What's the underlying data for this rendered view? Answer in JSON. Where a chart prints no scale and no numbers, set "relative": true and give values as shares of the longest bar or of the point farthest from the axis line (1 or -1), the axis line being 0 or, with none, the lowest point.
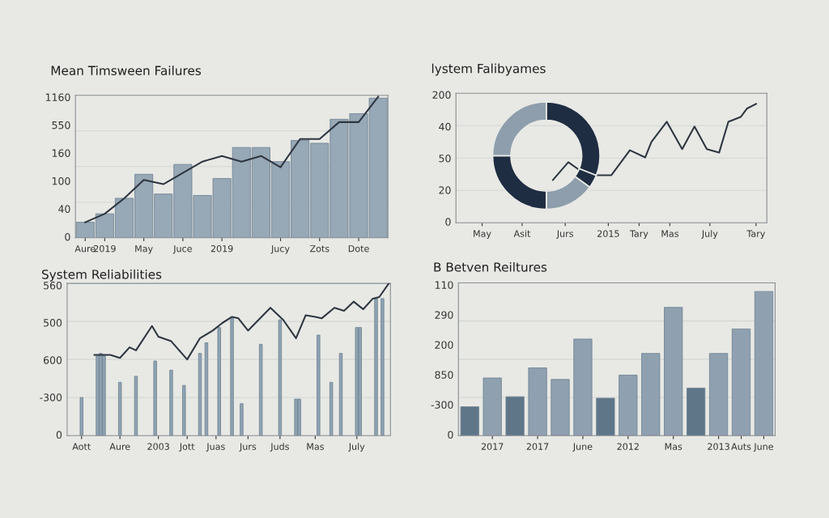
{
  "chart_data": [
    {
      "type": "bar",
      "title": "Mean Timswеen Failures",
      "grid": "y",
      "relative": true,
      "annotations": [
        "0",
        "40",
        "100",
        "160",
        "550",
        "1160"
      ],
      "categories": [
        "Aure",
        "2019",
        null,
        "May",
        null,
        "Juce",
        null,
        "2019",
        null,
        null,
        "Jucy",
        null,
        "Zots",
        null,
        "Dote",
        null
      ],
      "series": [
        {
          "type": "bar",
          "color": "#97a8b6",
          "values": [
            0.11,
            0.17,
            0.28,
            0.45,
            0.31,
            0.52,
            0.3,
            0.42,
            0.64,
            0.64,
            0.54,
            0.69,
            0.67,
            0.84,
            0.88,
            0.99
          ]
        },
        {
          "type": "line",
          "color": "#2e3640",
          "values": [
            0.11,
            0.17,
            0.28,
            0.41,
            0.38,
            0.46,
            0.54,
            0.58,
            0.54,
            0.58,
            0.5,
            0.7,
            0.7,
            0.82,
            0.82,
            1.0
          ]
        }
      ]
    },
    {
      "type": "line",
      "title": "lystem Falibyames",
      "grid": "y",
      "relative": true,
      "annotations": [
        "0",
        "20",
        "50",
        "40",
        "200"
      ],
      "categories": [
        null,
        null,
        null,
        null,
        null,
        null,
        null,
        null,
        "May",
        null,
        null,
        null,
        null,
        null,
        null,
        null,
        null,
        null,
        null,
        null,
        null,
        "Asit",
        null,
        null,
        null,
        null,
        null,
        null,
        null,
        null,
        null,
        null,
        null,
        null,
        null,
        "Jurs",
        null,
        null,
        null,
        null,
        null,
        null,
        null,
        null,
        null,
        null,
        null,
        null,
        null,
        "2015",
        null,
        null,
        null,
        null,
        null,
        null,
        null,
        null,
        null,
        "Tary",
        null,
        null,
        null,
        null,
        null,
        null,
        null,
        null,
        null,
        "Mas",
        null,
        null,
        null,
        null,
        null,
        null,
        null,
        null,
        null,
        null,
        null,
        null,
        "July",
        null,
        null,
        null,
        null,
        null,
        null,
        null,
        null,
        null,
        null,
        null,
        null,
        null,
        null,
        "Tary",
        null,
        null,
        null
      ],
      "series": [
        {
          "color": "#2e3640",
          "values": [
            null,
            null,
            null,
            null,
            null,
            null,
            null,
            null,
            null,
            null,
            null,
            null,
            null,
            null,
            null,
            null,
            null,
            null,
            null,
            null,
            null,
            null,
            null,
            null,
            null,
            null,
            null,
            null,
            null,
            null,
            null,
            0.36,
            null,
            null,
            null,
            null,
            0.51,
            null,
            null,
            null,
            null,
            null,
            0.4,
            null,
            null,
            null,
            null,
            null,
            null,
            null,
            0.4,
            null,
            null,
            null,
            null,
            null,
            0.61,
            null,
            null,
            null,
            null,
            0.55,
            null,
            0.68,
            null,
            null,
            null,
            null,
            0.85,
            null,
            null,
            null,
            null,
            0.62,
            null,
            null,
            null,
            0.81,
            null,
            null,
            null,
            0.62,
            null,
            null,
            null,
            0.59,
            null,
            null,
            0.85,
            null,
            null,
            null,
            0.89,
            null,
            0.96,
            null,
            null,
            1.0,
            null,
            null,
            null
          ]
        }
      ]
    },
    {
      "type": "donut",
      "categories": [
        null,
        null,
        null,
        null,
        null
      ],
      "values": [
        31,
        4,
        15,
        25,
        25
      ],
      "colors": [
        "#1f2d42",
        "#1f2d42",
        "#8e9eac",
        "#1f2d42",
        "#8e9eac"
      ]
    },
    {
      "type": "bar",
      "title": "System Reliabilities",
      "grid": "y",
      "relative": true,
      "annotations": [
        "0",
        "-300",
        "600",
        "500",
        "560"
      ],
      "categories": [
        null,
        null,
        null,
        null,
        "Aott",
        null,
        null,
        null,
        null,
        null,
        null,
        null,
        null,
        null,
        null,
        null,
        "Aure",
        null,
        null,
        null,
        null,
        null,
        null,
        null,
        null,
        null,
        null,
        null,
        "2003",
        null,
        null,
        null,
        null,
        null,
        null,
        null,
        null,
        "Jott",
        null,
        null,
        null,
        null,
        null,
        null,
        null,
        null,
        "Juas",
        null,
        null,
        null,
        null,
        null,
        null,
        null,
        null,
        null,
        "Jurs",
        null,
        null,
        null,
        null,
        null,
        null,
        null,
        null,
        null,
        "Juds",
        null,
        null,
        null,
        null,
        null,
        null,
        null,
        null,
        null,
        null,
        "Mas",
        null,
        null,
        null,
        null,
        null,
        null,
        null,
        null,
        null,
        null,
        null,
        null,
        "July",
        null,
        null,
        null,
        null,
        null,
        null,
        null,
        null,
        null,
        null
      ],
      "series": [
        {
          "type": "bar",
          "color": "#8fa3b3",
          "values": [
            null,
            null,
            null,
            null,
            0.25,
            null,
            null,
            null,
            null,
            0.53,
            0.54,
            0.53,
            null,
            null,
            null,
            null,
            0.35,
            null,
            null,
            null,
            null,
            0.39,
            null,
            null,
            null,
            null,
            null,
            0.49,
            null,
            null,
            null,
            null,
            0.43,
            null,
            null,
            null,
            0.33,
            null,
            null,
            null,
            null,
            0.54,
            null,
            0.61,
            null,
            null,
            null,
            0.71,
            null,
            null,
            null,
            0.77,
            null,
            null,
            0.21,
            null,
            null,
            null,
            null,
            null,
            0.6,
            null,
            null,
            null,
            null,
            null,
            0.76,
            null,
            null,
            null,
            null,
            0.24,
            0.24,
            null,
            null,
            null,
            null,
            null,
            0.66,
            null,
            null,
            null,
            0.35,
            null,
            null,
            0.54,
            null,
            null,
            null,
            null,
            0.71,
            0.71,
            null,
            null,
            null,
            null,
            0.9,
            null,
            0.9,
            null,
            null
          ]
        },
        {
          "type": "line",
          "color": "#2e3640",
          "values": [
            null,
            null,
            null,
            null,
            null,
            null,
            null,
            null,
            0.53,
            null,
            null,
            null,
            null,
            0.53,
            null,
            null,
            0.51,
            null,
            null,
            0.58,
            null,
            0.56,
            null,
            null,
            null,
            null,
            0.72,
            null,
            0.65,
            null,
            null,
            null,
            0.62,
            null,
            null,
            null,
            null,
            0.5,
            null,
            null,
            null,
            0.64,
            null,
            null,
            null,
            0.69,
            null,
            null,
            0.74,
            null,
            null,
            0.78,
            null,
            0.77,
            null,
            null,
            0.69,
            null,
            null,
            null,
            null,
            null,
            null,
            0.84,
            null,
            null,
            null,
            0.76,
            null,
            null,
            null,
            0.64,
            null,
            null,
            0.79,
            null,
            null,
            0.78,
            null,
            0.77,
            null,
            null,
            null,
            0.84,
            null,
            null,
            0.82,
            null,
            null,
            0.88,
            null,
            null,
            0.83,
            null,
            null,
            0.9,
            null,
            0.91,
            null,
            null,
            1.0
          ]
        }
      ]
    },
    {
      "type": "bar",
      "title": "B Betven Reiltures",
      "grid": "y",
      "relative": true,
      "annotations": [
        "0",
        "-300",
        "850",
        "200",
        "290",
        "110"
      ],
      "categories": [
        null,
        "2017",
        null,
        "2017",
        null,
        "June",
        null,
        "2012",
        null,
        "Mas",
        null,
        "2013",
        "Auts",
        "June"
      ],
      "values": [
        0.2,
        0.4,
        0.27,
        0.47,
        0.39,
        0.67,
        0.26,
        0.42,
        0.57,
        0.89,
        0.33,
        0.57,
        0.74,
        1.0
      ],
      "colors": [
        "#5f7689",
        "#8fa1b0",
        "#5f7689",
        "#8fa1b0",
        "#8fa1b0",
        "#8fa1b0",
        "#5f7689",
        "#8fa1b0",
        "#8fa1b0",
        "#8fa1b0",
        "#5f7689",
        "#8fa1b0",
        "#8fa1b0",
        "#8fa1b0"
      ]
    }
  ]
}
